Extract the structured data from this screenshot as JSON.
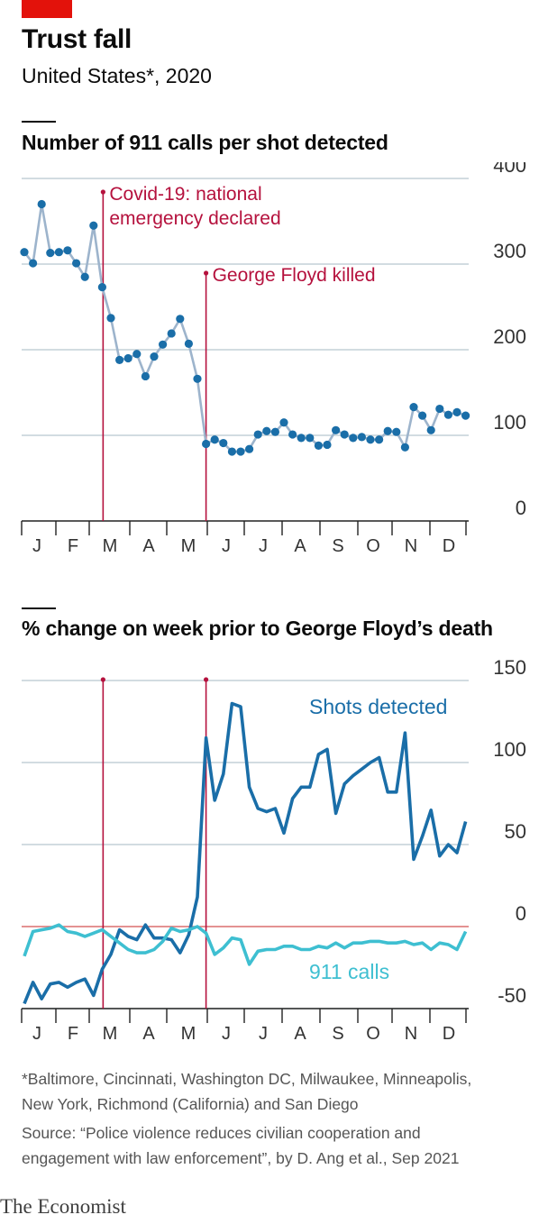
{
  "header": {
    "title": "Trust fall",
    "subtitle": "United States*, 2020"
  },
  "chart_data": [
    {
      "type": "line",
      "title": "Number of 911 calls per shot detected",
      "x_tick_labels": [
        "J",
        "F",
        "M",
        "A",
        "M",
        "J",
        "J",
        "A",
        "S",
        "O",
        "N",
        "D"
      ],
      "y_ticks": [
        0,
        100,
        200,
        300,
        400
      ],
      "ylim": [
        0,
        400
      ],
      "grid": true,
      "series": [
        {
          "name": "",
          "color": "#1a6ea8",
          "markers": true,
          "x": [
            0,
            1,
            2,
            3,
            4,
            5,
            6,
            7,
            8,
            9,
            10,
            11,
            12,
            13,
            14,
            15,
            16,
            17,
            18,
            19,
            20,
            21,
            22,
            23,
            24,
            25,
            26,
            27,
            28,
            29,
            30,
            31,
            32,
            33,
            34,
            35,
            36,
            37,
            38,
            39,
            40,
            41,
            42,
            43,
            44,
            45,
            46,
            47,
            48,
            49,
            50,
            51
          ],
          "values": [
            314,
            301,
            370,
            313,
            314,
            316,
            301,
            285,
            345,
            273,
            237,
            188,
            190,
            195,
            169,
            192,
            206,
            219,
            236,
            207,
            166,
            90,
            95,
            91,
            81,
            81,
            84,
            101,
            105,
            104,
            115,
            101,
            97,
            97,
            88,
            89,
            106,
            101,
            97,
            98,
            95,
            95,
            105,
            104,
            86,
            133,
            123,
            106,
            131,
            124,
            127,
            123
          ]
        }
      ],
      "annotations": [
        {
          "week": 9.1,
          "label_lines": [
            "Covid-19: national",
            "emergency declared"
          ]
        },
        {
          "week": 21,
          "label_lines": [
            "George Floyd killed"
          ]
        }
      ]
    },
    {
      "type": "line",
      "title": "% change on week prior to George Floyd’s death",
      "x_tick_labels": [
        "J",
        "F",
        "M",
        "A",
        "M",
        "J",
        "J",
        "A",
        "S",
        "O",
        "N",
        "D"
      ],
      "y_ticks": [
        -50,
        0,
        50,
        100,
        150
      ],
      "ylim": [
        -50,
        150
      ],
      "grid": true,
      "zero_line_color": "#db6f6f",
      "series": [
        {
          "name": "Shots detected",
          "color": "#1a6ea8",
          "x": [
            0,
            1,
            2,
            3,
            4,
            5,
            6,
            7,
            8,
            9,
            10,
            11,
            12,
            13,
            14,
            15,
            16,
            17,
            18,
            19,
            20,
            21,
            22,
            23,
            24,
            25,
            26,
            27,
            28,
            29,
            30,
            31,
            32,
            33,
            34,
            35,
            36,
            37,
            38,
            39,
            40,
            41,
            42,
            43,
            44,
            45,
            46,
            47,
            48,
            49,
            50,
            51
          ],
          "values": [
            -47,
            -34,
            -44,
            -35,
            -34,
            -37,
            -34,
            -32,
            -42,
            -26,
            -17,
            -2,
            -6,
            -8,
            1,
            -7,
            -7,
            -8,
            -16,
            -5,
            18,
            115,
            77,
            93,
            136,
            134,
            85,
            72,
            70,
            72,
            57,
            78,
            85,
            85,
            105,
            108,
            69,
            87,
            92,
            96,
            100,
            103,
            82,
            82,
            118,
            41,
            55,
            71,
            43,
            50,
            45,
            64
          ]
        },
        {
          "name": "911 calls",
          "color": "#3ebfd1",
          "x": [
            0,
            1,
            2,
            3,
            4,
            5,
            6,
            7,
            8,
            9,
            10,
            11,
            12,
            13,
            14,
            15,
            16,
            17,
            18,
            19,
            20,
            21,
            22,
            23,
            24,
            25,
            26,
            27,
            28,
            29,
            30,
            31,
            32,
            33,
            34,
            35,
            36,
            37,
            38,
            39,
            40,
            41,
            42,
            43,
            44,
            45,
            46,
            47,
            48,
            49,
            50,
            51
          ],
          "values": [
            -18,
            -3,
            -2,
            -1,
            1,
            -3,
            -4,
            -6,
            -4,
            -2,
            -6,
            -10,
            -14,
            -16,
            -16,
            -14,
            -9,
            -1,
            -3,
            -2,
            0,
            -4,
            -17,
            -13,
            -7,
            -8,
            -23,
            -15,
            -14,
            -14,
            -12,
            -12,
            -14,
            -14,
            -12,
            -13,
            -10,
            -13,
            -10,
            -10,
            -9,
            -9,
            -10,
            -10,
            -9,
            -11,
            -10,
            -14,
            -10,
            -11,
            -14,
            -3
          ]
        }
      ],
      "annotations": [
        {
          "week": 9.1
        },
        {
          "week": 21
        }
      ]
    }
  ],
  "footnote": {
    "note_line1": "*Baltimore, Cincinnati, Washington DC, Milwaukee, Minneapolis,",
    "note_line2": "New York, Richmond (California) and San Diego",
    "source_line1": "Source: “Police violence reduces civilian cooperation and",
    "source_line2": "engagement with law enforcement”, by D. Ang et al., Sep 2021"
  },
  "brand": "The Economist",
  "colors": {
    "brand_red": "#e3120b",
    "annotation": "#b5113d",
    "marker": "#1a6ea8",
    "line_chart1": "#9db4cc",
    "gridline": "#b7c6cf",
    "tick_label": "#333333"
  }
}
